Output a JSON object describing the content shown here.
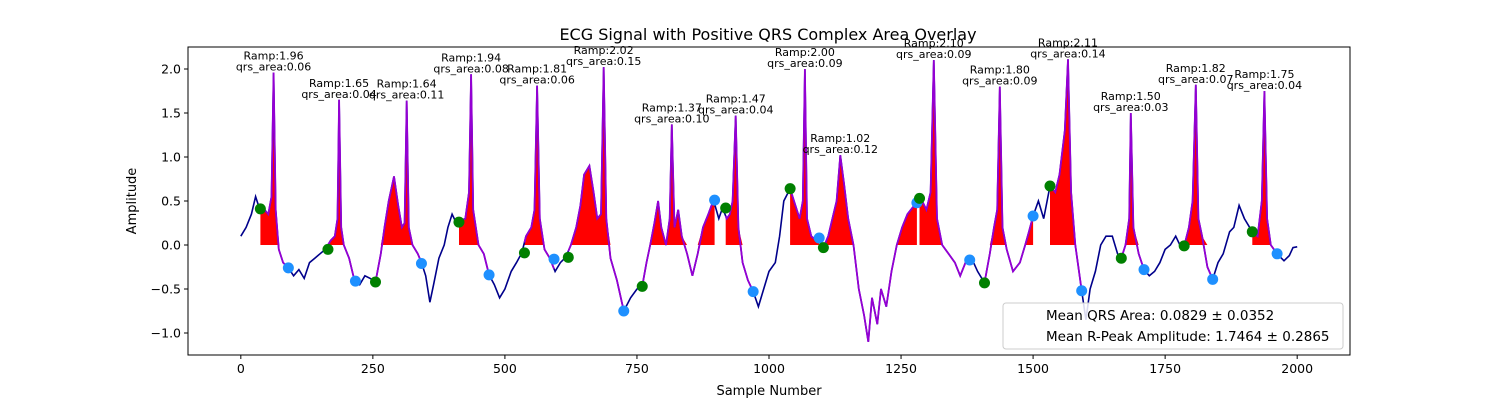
{
  "chart_data": {
    "type": "line",
    "title": "ECG Signal with Positive QRS Complex Area Overlay",
    "xlabel": "Sample Number",
    "ylabel": "Amplitude",
    "xlim": [
      -100,
      2100
    ],
    "ylim": [
      -1.25,
      2.25
    ],
    "xticks": [
      0,
      250,
      500,
      750,
      1000,
      1250,
      1500,
      1750,
      2000
    ],
    "yticks": [
      -1.0,
      -0.5,
      0.0,
      0.5,
      1.0,
      1.5,
      2.0
    ],
    "xtick_labels": [
      "0",
      "250",
      "500",
      "750",
      "1000",
      "1250",
      "1500",
      "1750",
      "2000"
    ],
    "ytick_labels": [
      "−1.0",
      "−0.5",
      "0.0",
      "0.5",
      "1.0",
      "1.5",
      "2.0"
    ],
    "colors": {
      "signal": "#00008b",
      "qrs_segment": "#9400d3",
      "qrs_fill": "#ff0000",
      "onset_marker": "#008000",
      "offset_marker": "#1e90ff"
    },
    "signal": [
      [
        0,
        0.1
      ],
      [
        10,
        0.2
      ],
      [
        20,
        0.35
      ],
      [
        28,
        0.55
      ],
      [
        35,
        0.42
      ],
      [
        45,
        0.4
      ],
      [
        52,
        0.35
      ],
      [
        58,
        0.55
      ],
      [
        62,
        1.96
      ],
      [
        66,
        0.4
      ],
      [
        72,
        -0.05
      ],
      [
        80,
        -0.2
      ],
      [
        90,
        -0.26
      ],
      [
        100,
        -0.35
      ],
      [
        110,
        -0.28
      ],
      [
        120,
        -0.38
      ],
      [
        130,
        -0.2
      ],
      [
        140,
        -0.15
      ],
      [
        150,
        -0.1
      ],
      [
        160,
        -0.05
      ],
      [
        170,
        0.05
      ],
      [
        178,
        0.1
      ],
      [
        183,
        0.3
      ],
      [
        186,
        1.65
      ],
      [
        190,
        0.2
      ],
      [
        195,
        0.0
      ],
      [
        205,
        -0.15
      ],
      [
        215,
        -0.4
      ],
      [
        225,
        -0.45
      ],
      [
        235,
        -0.35
      ],
      [
        245,
        -0.38
      ],
      [
        255,
        -0.42
      ],
      [
        265,
        -0.1
      ],
      [
        272,
        0.2
      ],
      [
        280,
        0.5
      ],
      [
        290,
        0.78
      ],
      [
        298,
        0.45
      ],
      [
        305,
        0.2
      ],
      [
        310,
        0.25
      ],
      [
        314,
        1.64
      ],
      [
        318,
        0.2
      ],
      [
        325,
        0.0
      ],
      [
        335,
        -0.1
      ],
      [
        342,
        -0.2
      ],
      [
        350,
        -0.35
      ],
      [
        358,
        -0.65
      ],
      [
        365,
        -0.45
      ],
      [
        375,
        -0.15
      ],
      [
        385,
        0.0
      ],
      [
        392,
        0.2
      ],
      [
        400,
        0.35
      ],
      [
        408,
        0.25
      ],
      [
        415,
        0.28
      ],
      [
        425,
        0.3
      ],
      [
        432,
        0.6
      ],
      [
        436,
        1.94
      ],
      [
        440,
        0.4
      ],
      [
        450,
        0.0
      ],
      [
        460,
        -0.1
      ],
      [
        470,
        -0.34
      ],
      [
        480,
        -0.45
      ],
      [
        490,
        -0.6
      ],
      [
        500,
        -0.5
      ],
      [
        512,
        -0.3
      ],
      [
        522,
        -0.2
      ],
      [
        532,
        -0.09
      ],
      [
        540,
        0.1
      ],
      [
        550,
        0.2
      ],
      [
        556,
        0.4
      ],
      [
        561,
        1.81
      ],
      [
        566,
        0.3
      ],
      [
        575,
        -0.05
      ],
      [
        585,
        -0.15
      ],
      [
        595,
        -0.3
      ],
      [
        605,
        -0.2
      ],
      [
        615,
        -0.14
      ],
      [
        625,
        0.0
      ],
      [
        635,
        0.2
      ],
      [
        643,
        0.45
      ],
      [
        650,
        0.8
      ],
      [
        660,
        0.9
      ],
      [
        668,
        0.6
      ],
      [
        675,
        0.3
      ],
      [
        682,
        0.35
      ],
      [
        687,
        2.02
      ],
      [
        692,
        0.3
      ],
      [
        700,
        -0.15
      ],
      [
        712,
        -0.4
      ],
      [
        725,
        -0.75
      ],
      [
        738,
        -0.6
      ],
      [
        750,
        -0.5
      ],
      [
        760,
        -0.47
      ],
      [
        768,
        -0.2
      ],
      [
        775,
        0.0
      ],
      [
        783,
        0.25
      ],
      [
        790,
        0.5
      ],
      [
        796,
        0.2
      ],
      [
        805,
        0.0
      ],
      [
        812,
        0.3
      ],
      [
        816,
        1.37
      ],
      [
        821,
        0.2
      ],
      [
        828,
        0.4
      ],
      [
        835,
        0.1
      ],
      [
        845,
        -0.1
      ],
      [
        855,
        -0.35
      ],
      [
        865,
        -0.1
      ],
      [
        875,
        0.2
      ],
      [
        885,
        0.35
      ],
      [
        895,
        0.51
      ],
      [
        905,
        0.3
      ],
      [
        912,
        0.42
      ],
      [
        920,
        0.3
      ],
      [
        926,
        0.35
      ],
      [
        931,
        0.5
      ],
      [
        937,
        1.47
      ],
      [
        942,
        0.2
      ],
      [
        950,
        -0.2
      ],
      [
        960,
        -0.4
      ],
      [
        970,
        -0.53
      ],
      [
        980,
        -0.7
      ],
      [
        990,
        -0.5
      ],
      [
        1000,
        -0.3
      ],
      [
        1012,
        -0.2
      ],
      [
        1020,
        0.1
      ],
      [
        1028,
        0.5
      ],
      [
        1040,
        0.64
      ],
      [
        1050,
        0.45
      ],
      [
        1058,
        0.3
      ],
      [
        1064,
        0.5
      ],
      [
        1068,
        2.0
      ],
      [
        1072,
        0.3
      ],
      [
        1080,
        0.1
      ],
      [
        1090,
        0.05
      ],
      [
        1095,
        0.08
      ],
      [
        1103,
        -0.03
      ],
      [
        1112,
        0.1
      ],
      [
        1120,
        0.3
      ],
      [
        1128,
        0.5
      ],
      [
        1135,
        1.02
      ],
      [
        1142,
        0.7
      ],
      [
        1150,
        0.3
      ],
      [
        1160,
        0.0
      ],
      [
        1170,
        -0.5
      ],
      [
        1180,
        -0.8
      ],
      [
        1188,
        -1.1
      ],
      [
        1195,
        -0.6
      ],
      [
        1205,
        -0.9
      ],
      [
        1212,
        -0.5
      ],
      [
        1222,
        -0.7
      ],
      [
        1232,
        -0.3
      ],
      [
        1242,
        0.0
      ],
      [
        1252,
        0.2
      ],
      [
        1262,
        0.35
      ],
      [
        1275,
        0.45
      ],
      [
        1282,
        0.53
      ],
      [
        1290,
        0.5
      ],
      [
        1298,
        0.4
      ],
      [
        1306,
        0.6
      ],
      [
        1312,
        2.1
      ],
      [
        1318,
        0.3
      ],
      [
        1328,
        0.0
      ],
      [
        1340,
        -0.1
      ],
      [
        1352,
        -0.2
      ],
      [
        1362,
        -0.35
      ],
      [
        1372,
        -0.2
      ],
      [
        1385,
        -0.17
      ],
      [
        1395,
        -0.3
      ],
      [
        1408,
        -0.43
      ],
      [
        1418,
        -0.1
      ],
      [
        1426,
        0.2
      ],
      [
        1432,
        0.4
      ],
      [
        1437,
        1.8
      ],
      [
        1442,
        0.2
      ],
      [
        1450,
        -0.05
      ],
      [
        1462,
        -0.3
      ],
      [
        1475,
        -0.2
      ],
      [
        1485,
        0.0
      ],
      [
        1492,
        0.15
      ],
      [
        1500,
        0.33
      ],
      [
        1510,
        0.5
      ],
      [
        1520,
        0.3
      ],
      [
        1532,
        0.67
      ],
      [
        1542,
        0.6
      ],
      [
        1550,
        0.8
      ],
      [
        1560,
        1.3
      ],
      [
        1566,
        2.11
      ],
      [
        1572,
        0.6
      ],
      [
        1580,
        0.0
      ],
      [
        1592,
        -0.52
      ],
      [
        1600,
        -0.85
      ],
      [
        1608,
        -0.5
      ],
      [
        1618,
        -0.3
      ],
      [
        1628,
        0.0
      ],
      [
        1638,
        0.1
      ],
      [
        1650,
        0.1
      ],
      [
        1660,
        -0.1
      ],
      [
        1667,
        -0.15
      ],
      [
        1675,
        0.0
      ],
      [
        1682,
        0.3
      ],
      [
        1685,
        1.5
      ],
      [
        1690,
        0.2
      ],
      [
        1700,
        -0.1
      ],
      [
        1710,
        -0.28
      ],
      [
        1720,
        -0.35
      ],
      [
        1730,
        -0.3
      ],
      [
        1740,
        -0.2
      ],
      [
        1750,
        -0.05
      ],
      [
        1760,
        0.0
      ],
      [
        1770,
        0.1
      ],
      [
        1778,
        0.0
      ],
      [
        1786,
        -0.01
      ],
      [
        1795,
        0.2
      ],
      [
        1802,
        0.5
      ],
      [
        1808,
        1.82
      ],
      [
        1813,
        0.3
      ],
      [
        1820,
        0.1
      ],
      [
        1830,
        -0.25
      ],
      [
        1840,
        -0.39
      ],
      [
        1850,
        -0.2
      ],
      [
        1860,
        -0.1
      ],
      [
        1872,
        0.15
      ],
      [
        1880,
        0.2
      ],
      [
        1890,
        0.45
      ],
      [
        1900,
        0.3
      ],
      [
        1915,
        0.15
      ],
      [
        1925,
        0.1
      ],
      [
        1933,
        0.5
      ],
      [
        1938,
        1.75
      ],
      [
        1943,
        0.3
      ],
      [
        1950,
        0.0
      ],
      [
        1962,
        -0.1
      ],
      [
        1975,
        -0.18
      ],
      [
        1985,
        -0.12
      ],
      [
        1992,
        -0.03
      ],
      [
        2000,
        -0.02
      ]
    ],
    "beats": [
      {
        "onset": 37,
        "peak": 62,
        "offset": 90,
        "ramp": 1.96,
        "qrs_area": 0.06,
        "onset_y": 0.41,
        "offset_y": -0.26,
        "r_label": "Ramp:1.96",
        "area_label": "qrs_area:0.06"
      },
      {
        "onset": 165,
        "peak": 186,
        "offset": 217,
        "ramp": 1.65,
        "qrs_area": 0.04,
        "onset_y": -0.05,
        "offset_y": -0.41,
        "r_label": "Ramp:1.65",
        "area_label": "qrs_area:0.04"
      },
      {
        "onset": 255,
        "peak": 314,
        "offset": 342,
        "ramp": 1.64,
        "qrs_area": 0.11,
        "onset_y": -0.42,
        "offset_y": -0.21,
        "r_label": "Ramp:1.64",
        "area_label": "qrs_area:0.11"
      },
      {
        "onset": 413,
        "peak": 436,
        "offset": 470,
        "ramp": 1.94,
        "qrs_area": 0.08,
        "onset_y": 0.26,
        "offset_y": -0.34,
        "r_label": "Ramp:1.94",
        "area_label": "qrs_area:0.08"
      },
      {
        "onset": 537,
        "peak": 561,
        "offset": 593,
        "ramp": 1.81,
        "qrs_area": 0.06,
        "onset_y": -0.09,
        "offset_y": -0.16,
        "r_label": "Ramp:1.81",
        "area_label": "qrs_area:0.06"
      },
      {
        "onset": 620,
        "peak": 687,
        "offset": 725,
        "ramp": 2.02,
        "qrs_area": 0.15,
        "onset_y": -0.14,
        "offset_y": -0.75,
        "r_label": "Ramp:2.02",
        "area_label": "qrs_area:0.15"
      },
      {
        "onset": 760,
        "peak": 816,
        "offset": 897,
        "ramp": 1.37,
        "qrs_area": 0.1,
        "onset_y": -0.47,
        "offset_y": 0.51,
        "r_label": "Ramp:1.37",
        "area_label": "qrs_area:0.10"
      },
      {
        "onset": 918,
        "peak": 937,
        "offset": 970,
        "ramp": 1.47,
        "qrs_area": 0.04,
        "onset_y": 0.42,
        "offset_y": -0.53,
        "r_label": "Ramp:1.47",
        "area_label": "qrs_area:0.04"
      },
      {
        "onset": 1040,
        "peak": 1068,
        "offset": 1095,
        "ramp": 2.0,
        "qrs_area": 0.09,
        "onset_y": 0.64,
        "offset_y": 0.08,
        "r_label": "Ramp:2.00",
        "area_label": "qrs_area:0.09"
      },
      {
        "onset": 1103,
        "peak": 1135,
        "offset": 1280,
        "ramp": 1.02,
        "qrs_area": 0.12,
        "onset_y": -0.03,
        "offset_y": 0.48,
        "r_label": "Ramp:1.02",
        "area_label": "qrs_area:0.12"
      },
      {
        "onset": 1285,
        "peak": 1312,
        "offset": 1380,
        "ramp": 2.1,
        "qrs_area": 0.09,
        "onset_y": 0.53,
        "offset_y": -0.17,
        "r_label": "Ramp:2.10",
        "area_label": "qrs_area:0.09"
      },
      {
        "onset": 1408,
        "peak": 1437,
        "offset": 1500,
        "ramp": 1.8,
        "qrs_area": 0.09,
        "onset_y": -0.43,
        "offset_y": 0.33,
        "r_label": "Ramp:1.80",
        "area_label": "qrs_area:0.09"
      },
      {
        "onset": 1532,
        "peak": 1566,
        "offset": 1592,
        "ramp": 2.11,
        "qrs_area": 0.14,
        "onset_y": 0.67,
        "offset_y": -0.52,
        "r_label": "Ramp:2.11",
        "area_label": "qrs_area:0.14"
      },
      {
        "onset": 1667,
        "peak": 1685,
        "offset": 1710,
        "ramp": 1.5,
        "qrs_area": 0.03,
        "onset_y": -0.15,
        "offset_y": -0.28,
        "r_label": "Ramp:1.50",
        "area_label": "qrs_area:0.03"
      },
      {
        "onset": 1786,
        "peak": 1808,
        "offset": 1840,
        "ramp": 1.82,
        "qrs_area": 0.07,
        "onset_y": -0.01,
        "offset_y": -0.39,
        "r_label": "Ramp:1.82",
        "area_label": "qrs_area:0.07"
      },
      {
        "onset": 1915,
        "peak": 1938,
        "offset": 1962,
        "ramp": 1.75,
        "qrs_area": 0.04,
        "onset_y": 0.15,
        "offset_y": -0.1,
        "r_label": "Ramp:1.75",
        "area_label": "qrs_area:0.04"
      }
    ],
    "legend": {
      "placement": "lower-right",
      "entries": [
        "Mean QRS Area: 0.0829 ± 0.0352",
        "Mean R-Peak Amplitude: 1.7464 ± 0.2865"
      ]
    }
  }
}
